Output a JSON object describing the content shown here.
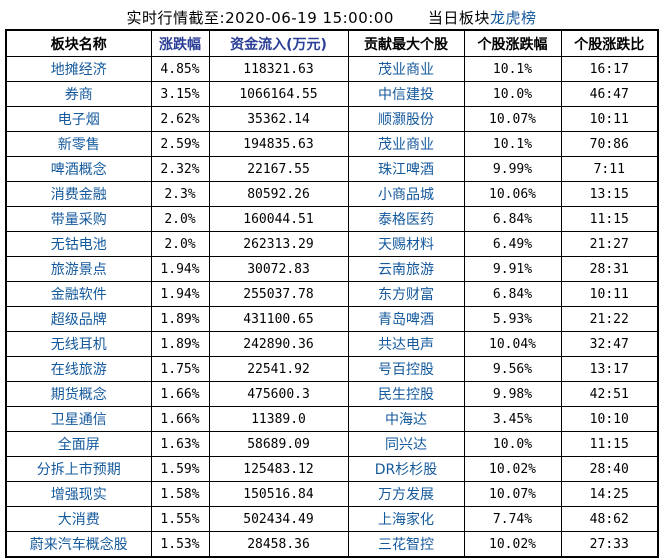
{
  "title": {
    "realtime_caption": "实时行情截至:2020-06-19 15:00:00",
    "board_label": "当日板块",
    "board_link": "龙虎榜"
  },
  "colors": {
    "link_blue": "#14599C",
    "sorted_header_blue": "#2B3F96",
    "border_black": "#000000",
    "background": "#FFFFFF"
  },
  "table": {
    "headers": [
      {
        "label": "板块名称"
      },
      {
        "label": "涨跌幅"
      },
      {
        "label": "资金流入(万元)"
      },
      {
        "label": "贡献最大个股"
      },
      {
        "label": "个股涨跌幅"
      },
      {
        "label": "个股涨跌比"
      }
    ],
    "rows": [
      {
        "sector": "地摊经济",
        "change": "4.85%",
        "inflow": "118321.63",
        "stock": "茂业商业",
        "stock_change": "10.1%",
        "ratio": "16:17"
      },
      {
        "sector": "券商",
        "change": "3.15%",
        "inflow": "1066164.55",
        "stock": "中信建投",
        "stock_change": "10.0%",
        "ratio": "46:47"
      },
      {
        "sector": "电子烟",
        "change": "2.62%",
        "inflow": "35362.14",
        "stock": "顺灏股份",
        "stock_change": "10.07%",
        "ratio": "10:11"
      },
      {
        "sector": "新零售",
        "change": "2.59%",
        "inflow": "194835.63",
        "stock": "茂业商业",
        "stock_change": "10.1%",
        "ratio": "70:86"
      },
      {
        "sector": "啤酒概念",
        "change": "2.32%",
        "inflow": "22167.55",
        "stock": "珠江啤酒",
        "stock_change": "9.99%",
        "ratio": "7:11"
      },
      {
        "sector": "消费金融",
        "change": "2.3%",
        "inflow": "80592.26",
        "stock": "小商品城",
        "stock_change": "10.06%",
        "ratio": "13:15"
      },
      {
        "sector": "带量采购",
        "change": "2.0%",
        "inflow": "160044.51",
        "stock": "泰格医药",
        "stock_change": "6.84%",
        "ratio": "11:15"
      },
      {
        "sector": "无钴电池",
        "change": "2.0%",
        "inflow": "262313.29",
        "stock": "天赐材料",
        "stock_change": "6.49%",
        "ratio": "21:27"
      },
      {
        "sector": "旅游景点",
        "change": "1.94%",
        "inflow": "30072.83",
        "stock": "云南旅游",
        "stock_change": "9.91%",
        "ratio": "28:31"
      },
      {
        "sector": "金融软件",
        "change": "1.94%",
        "inflow": "255037.78",
        "stock": "东方财富",
        "stock_change": "6.84%",
        "ratio": "10:11"
      },
      {
        "sector": "超级品牌",
        "change": "1.89%",
        "inflow": "431100.65",
        "stock": "青岛啤酒",
        "stock_change": "5.93%",
        "ratio": "21:22"
      },
      {
        "sector": "无线耳机",
        "change": "1.89%",
        "inflow": "242890.36",
        "stock": "共达电声",
        "stock_change": "10.04%",
        "ratio": "32:47"
      },
      {
        "sector": "在线旅游",
        "change": "1.75%",
        "inflow": "22541.92",
        "stock": "号百控股",
        "stock_change": "9.56%",
        "ratio": "13:17"
      },
      {
        "sector": "期货概念",
        "change": "1.66%",
        "inflow": "475600.3",
        "stock": "民生控股",
        "stock_change": "9.98%",
        "ratio": "42:51"
      },
      {
        "sector": "卫星通信",
        "change": "1.66%",
        "inflow": "11389.0",
        "stock": "中海达",
        "stock_change": "3.45%",
        "ratio": "10:10"
      },
      {
        "sector": "全面屏",
        "change": "1.63%",
        "inflow": "58689.09",
        "stock": "同兴达",
        "stock_change": "10.0%",
        "ratio": "11:15"
      },
      {
        "sector": "分拆上市预期",
        "change": "1.59%",
        "inflow": "125483.12",
        "stock": "DR杉杉股",
        "stock_change": "10.02%",
        "ratio": "28:40"
      },
      {
        "sector": "增强现实",
        "change": "1.58%",
        "inflow": "150516.84",
        "stock": "万方发展",
        "stock_change": "10.07%",
        "ratio": "14:25"
      },
      {
        "sector": "大消费",
        "change": "1.55%",
        "inflow": "502434.49",
        "stock": "上海家化",
        "stock_change": "7.74%",
        "ratio": "48:62"
      },
      {
        "sector": "蔚来汽车概念股",
        "change": "1.53%",
        "inflow": "28458.36",
        "stock": "三花智控",
        "stock_change": "10.02%",
        "ratio": "27:33"
      }
    ]
  }
}
